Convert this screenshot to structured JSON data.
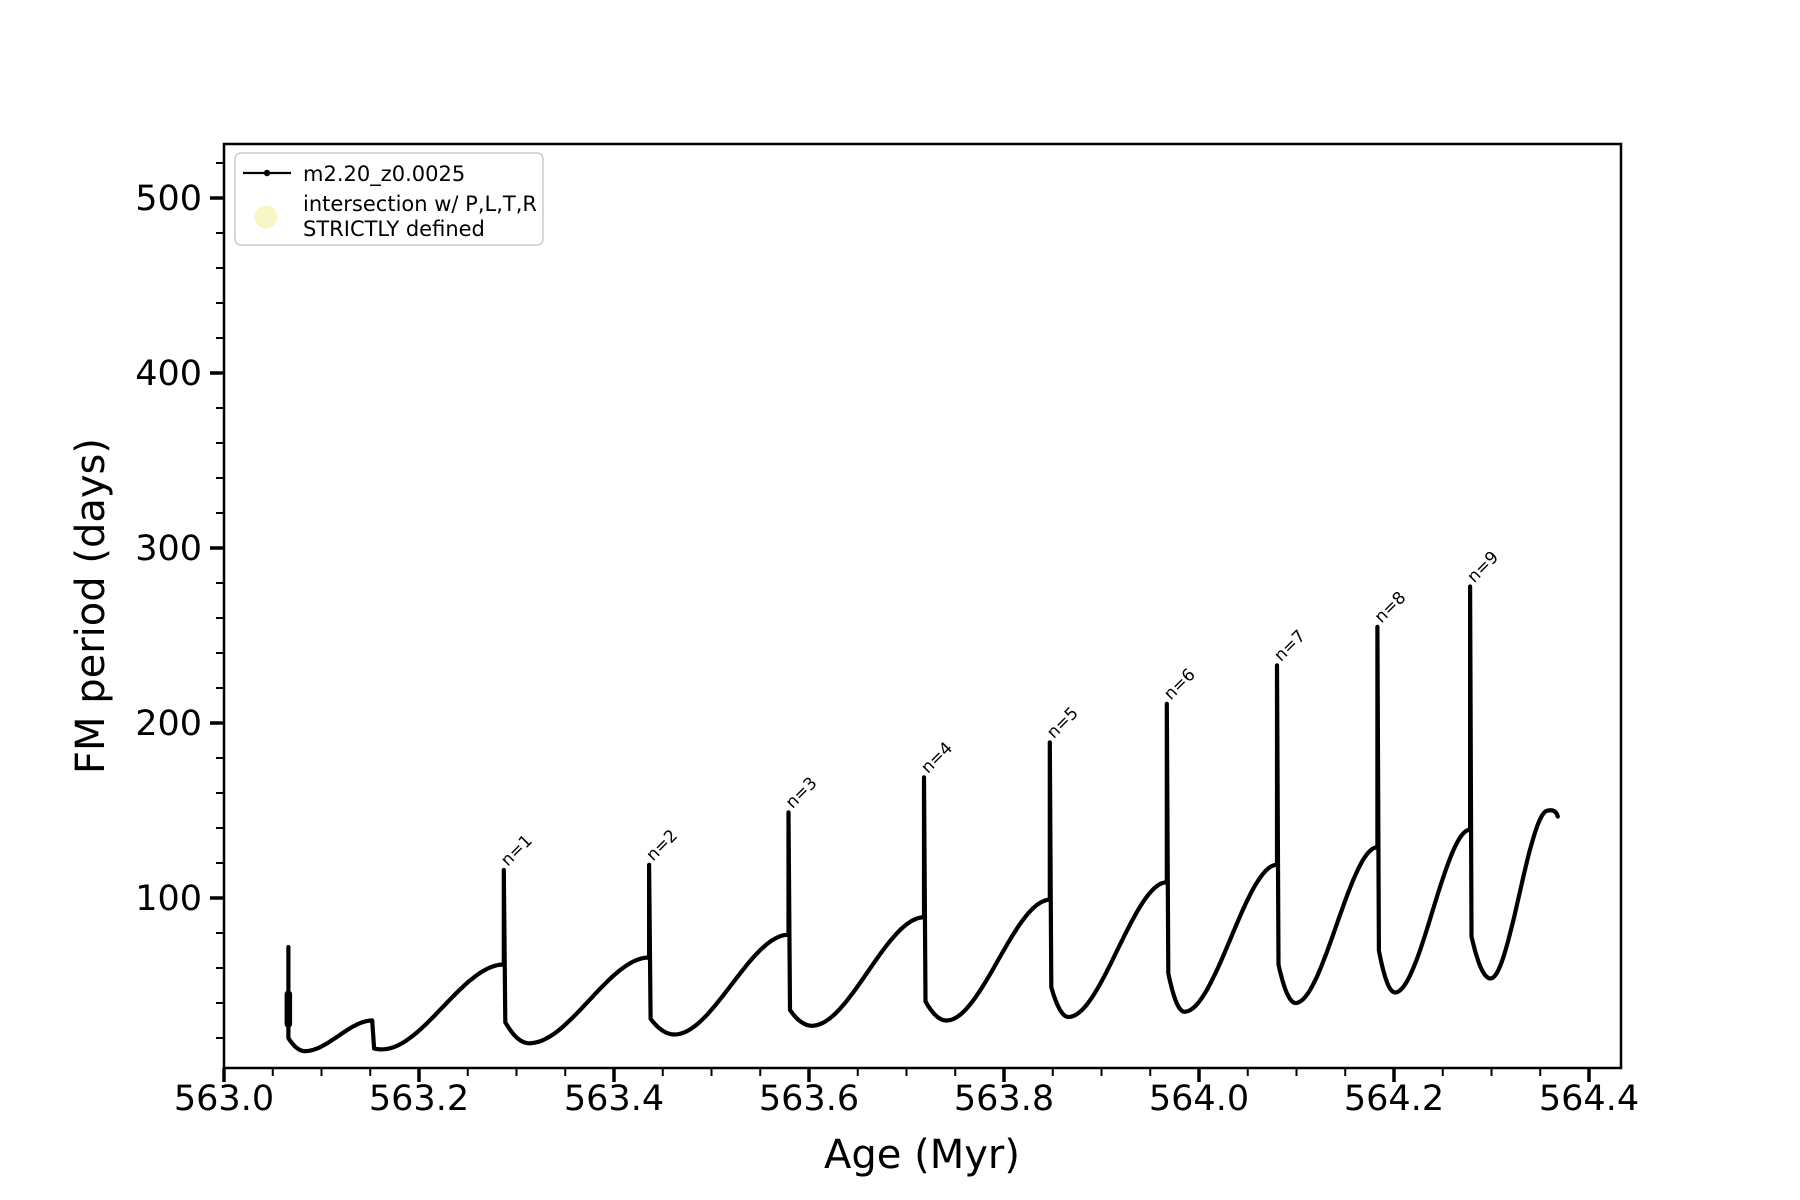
{
  "figure": {
    "background": "#ffffff"
  },
  "chart_data": {
    "type": "line",
    "title": "",
    "xlabel": "Age (Myr)",
    "ylabel": "FM period (days)",
    "xlim": [
      563.0,
      564.433
    ],
    "ylim": [
      2.9,
      531
    ],
    "grid": false,
    "x_ticks": [
      563.0,
      563.2,
      563.4,
      563.6,
      563.8,
      564.0,
      564.2,
      564.4
    ],
    "x_tick_labels": [
      "563.0",
      "563.2",
      "563.4",
      "563.6",
      "563.8",
      "564.0",
      "564.2",
      "564.4"
    ],
    "x_minor_step": 0.05,
    "y_ticks": [
      100,
      200,
      300,
      400,
      500
    ],
    "y_tick_labels": [
      "100",
      "200",
      "300",
      "400",
      "500"
    ],
    "y_minor_step": 20,
    "line_color": "#000000",
    "legend": {
      "position": "upper left",
      "entries": [
        {
          "label": "m2.20_z0.0025",
          "type": "line-dot",
          "color": "#000000"
        },
        {
          "label": "intersection w/ P,L,T,R\nSTRICTLY defined",
          "label_lines": [
            "intersection w/ P,L,T,R",
            "STRICTLY defined"
          ],
          "type": "circle",
          "color": "#f8f5c6"
        }
      ]
    },
    "series_name": "m2.20_z0.0025",
    "annotations": [
      {
        "text": "n=1",
        "x": 563.287,
        "y": 116
      },
      {
        "text": "n=2",
        "x": 563.436,
        "y": 119
      },
      {
        "text": "n=3",
        "x": 563.579,
        "y": 149
      },
      {
        "text": "n=4",
        "x": 563.718,
        "y": 169
      },
      {
        "text": "n=5",
        "x": 563.847,
        "y": 189
      },
      {
        "text": "n=6",
        "x": 563.967,
        "y": 211
      },
      {
        "text": "n=7",
        "x": 564.08,
        "y": 233
      },
      {
        "text": "n=8",
        "x": 564.183,
        "y": 255
      },
      {
        "text": "n=9",
        "x": 564.278,
        "y": 278
      }
    ],
    "initial_spike": {
      "x": 563.066,
      "top": 72,
      "bottom": 20,
      "blob_low": 28,
      "blob_high": 45
    },
    "cycles": [
      {
        "start_x": 563.066,
        "drop_y": 20,
        "dip_x": 563.083,
        "dip_y": 12.5,
        "spike_x": 563.152,
        "peak_y": 30,
        "spike_top": null
      },
      {
        "start_x": 563.154,
        "drop_y": 14,
        "dip_x": 563.162,
        "dip_y": 13.5,
        "spike_x": 563.287,
        "peak_y": 62,
        "spike_top": 116,
        "label": "n=1"
      },
      {
        "start_x": 563.2885,
        "drop_y": 29,
        "dip_x": 563.313,
        "dip_y": 17,
        "spike_x": 563.436,
        "peak_y": 66,
        "spike_top": 119,
        "label": "n=2"
      },
      {
        "start_x": 563.4375,
        "drop_y": 31,
        "dip_x": 563.462,
        "dip_y": 22,
        "spike_x": 563.579,
        "peak_y": 79,
        "spike_top": 149,
        "label": "n=3"
      },
      {
        "start_x": 563.5805,
        "drop_y": 36,
        "dip_x": 563.603,
        "dip_y": 27,
        "spike_x": 563.718,
        "peak_y": 89,
        "spike_top": 169,
        "label": "n=4"
      },
      {
        "start_x": 563.7195,
        "drop_y": 41,
        "dip_x": 563.741,
        "dip_y": 30,
        "spike_x": 563.847,
        "peak_y": 99,
        "spike_top": 189,
        "label": "n=5"
      },
      {
        "start_x": 563.8485,
        "drop_y": 49,
        "dip_x": 563.866,
        "dip_y": 32,
        "spike_x": 563.967,
        "peak_y": 109,
        "spike_top": 211,
        "label": "n=6"
      },
      {
        "start_x": 563.9685,
        "drop_y": 57,
        "dip_x": 563.985,
        "dip_y": 35,
        "spike_x": 564.08,
        "peak_y": 119,
        "spike_top": 233,
        "label": "n=7"
      },
      {
        "start_x": 564.0815,
        "drop_y": 62,
        "dip_x": 564.099,
        "dip_y": 40,
        "spike_x": 564.183,
        "peak_y": 129,
        "spike_top": 255,
        "label": "n=8"
      },
      {
        "start_x": 564.1845,
        "drop_y": 70,
        "dip_x": 564.201,
        "dip_y": 46,
        "spike_x": 564.278,
        "peak_y": 139,
        "spike_top": 278,
        "label": "n=9"
      },
      {
        "start_x": 564.2795,
        "drop_y": 78,
        "dip_x": 564.299,
        "dip_y": 54,
        "spike_x": 564.358,
        "peak_y": 150,
        "spike_top": null,
        "end_hook": {
          "x": 564.368,
          "y": 146.5
        }
      }
    ]
  }
}
